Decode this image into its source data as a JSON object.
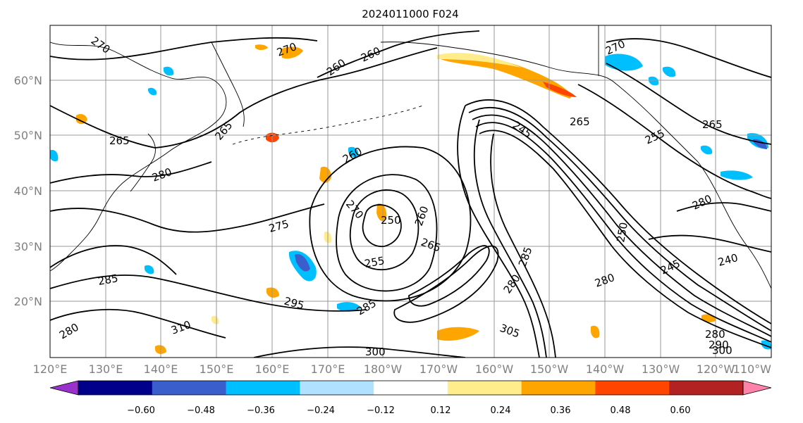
{
  "title": "2024011000 F024",
  "map": {
    "lat_labels": [
      "60°N",
      "50°N",
      "40°N",
      "30°N",
      "20°N"
    ],
    "lon_labels": [
      "120°E",
      "130°E",
      "140°E",
      "150°E",
      "160°E",
      "170°E",
      "180°W",
      "170°W",
      "160°W",
      "150°W",
      "140°W",
      "130°W",
      "120°W",
      "110°W"
    ],
    "contour_labels": [
      "270",
      "270",
      "260",
      "260",
      "265",
      "265",
      "260",
      "280",
      "275",
      "270",
      "250",
      "260",
      "265",
      "255",
      "245",
      "265",
      "270",
      "265",
      "255",
      "250",
      "240",
      "245",
      "280",
      "285",
      "280",
      "300",
      "305",
      "280",
      "285",
      "280",
      "290",
      "300",
      "310",
      "295",
      "285",
      "280"
    ]
  },
  "colorbar": {
    "tick_labels": [
      "−0.60",
      "−0.48",
      "−0.36",
      "−0.24",
      "−0.12",
      "0.12",
      "0.24",
      "0.36",
      "0.48",
      "0.60"
    ],
    "colors": [
      "#9932cc",
      "#00008b",
      "#3a5fcd",
      "#00bfff",
      "#b0e2ff",
      "#ffffff",
      "#ffec8b",
      "#ffa500",
      "#ff4500",
      "#b22222",
      "#ff82ab"
    ]
  }
}
